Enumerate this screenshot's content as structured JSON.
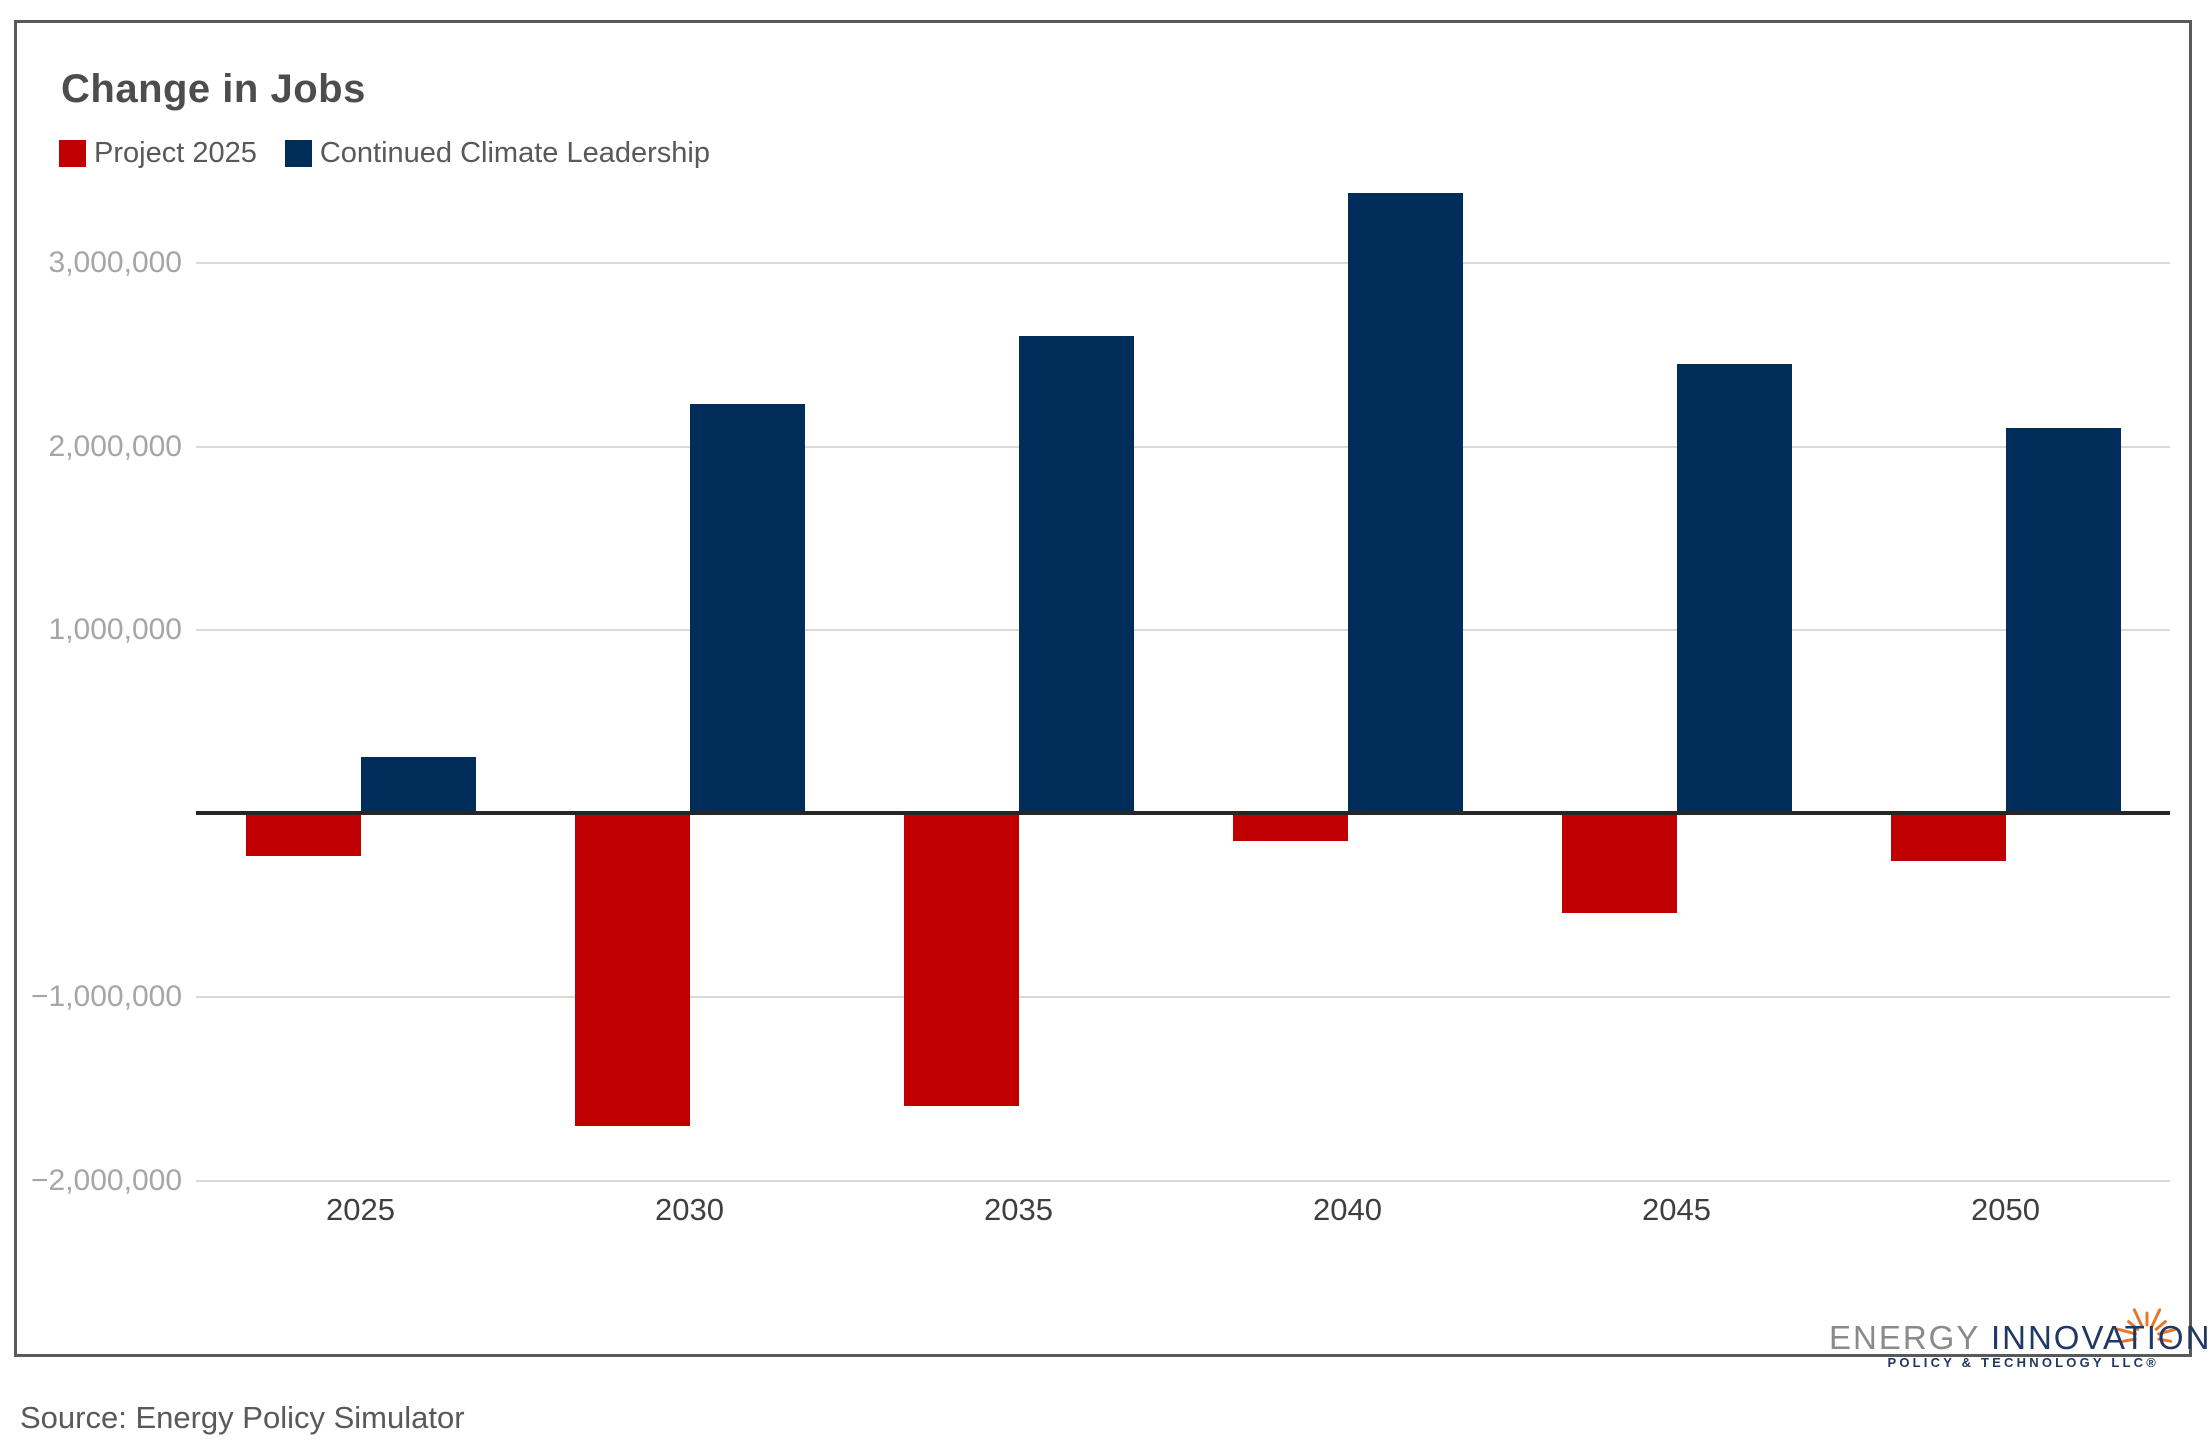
{
  "title": "Change in Jobs",
  "legend": [
    {
      "label": "Project 2025",
      "color": "#C00000"
    },
    {
      "label": "Continued Climate Leadership",
      "color": "#002D5A"
    }
  ],
  "source_note": "Source: Energy Policy Simulator",
  "logo": {
    "energy": "ENERGY",
    "innovation": "INNOVATION",
    "tagline": "POLICY & TECHNOLOGY LLC®"
  },
  "colors": {
    "project_2025_red": "#C00000",
    "climate_leadership_navy": "#002D5A",
    "gridline_gray": "#D9D9D9",
    "zero_axis_dark": "#262626",
    "y_label_gray": "#A6A6A6",
    "x_label_dark_gray": "#3F3F3F",
    "panel_border_gray": "#595959",
    "logo_orange": "#E8772B"
  },
  "chart_data": {
    "type": "bar",
    "title": "Change in Jobs",
    "categories": [
      "2025",
      "2030",
      "2035",
      "2040",
      "2045",
      "2050"
    ],
    "series": [
      {
        "name": "Project 2025",
        "color": "#C00000",
        "values": [
          -230000,
          -1700000,
          -1590000,
          -150000,
          -540000,
          -260000
        ]
      },
      {
        "name": "Continued Climate Leadership",
        "color": "#002D5A",
        "values": [
          310000,
          2230000,
          2600000,
          3380000,
          2450000,
          2100000
        ]
      }
    ],
    "xlabel": "",
    "ylabel": "",
    "ylim": [
      -2300000,
      3550000
    ],
    "yticks": [
      3000000,
      2000000,
      1000000,
      -1000000,
      -2000000
    ],
    "ytick_labels": [
      "3,000,000",
      "2,000,000",
      "1,000,000",
      "−1,000,000",
      "−2,000,000"
    ],
    "zero_line": true,
    "grid": true,
    "legend_position": "top-left"
  }
}
